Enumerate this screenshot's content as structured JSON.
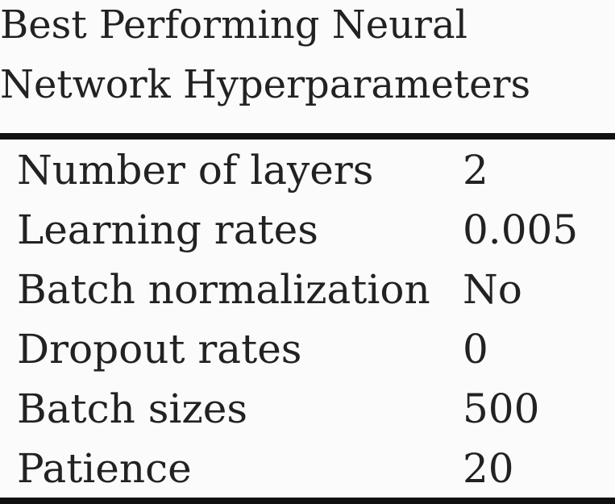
{
  "caption": {
    "line1": "Best Performing Neural",
    "line2": "Network Hyperparameters"
  },
  "table": {
    "rows": [
      {
        "label": "Number of layers",
        "value": "2"
      },
      {
        "label": "Learning rates",
        "value": "0.005"
      },
      {
        "label": "Batch normalization",
        "value": "No"
      },
      {
        "label": "Dropout rates",
        "value": "0"
      },
      {
        "label": "Batch sizes",
        "value": "500"
      },
      {
        "label": "Patience",
        "value": "20"
      }
    ]
  },
  "colors": {
    "background": "#fbfbfb",
    "text": "#222222",
    "rule": "#111111"
  }
}
